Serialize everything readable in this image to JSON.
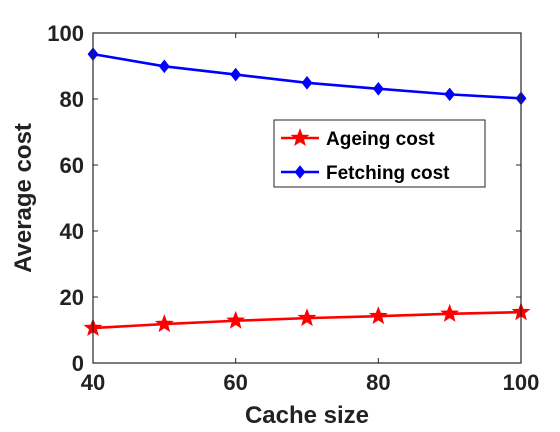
{
  "chart_data": {
    "type": "line",
    "title": "",
    "xlabel": "Cache size",
    "ylabel": "Average cost",
    "x": [
      40,
      50,
      60,
      70,
      80,
      90,
      100
    ],
    "xlim": [
      40,
      100
    ],
    "ylim": [
      0,
      100
    ],
    "xticks": [
      "40",
      "60",
      "80",
      "100"
    ],
    "yticks": [
      "0",
      "20",
      "40",
      "60",
      "80",
      "100"
    ],
    "grid": false,
    "legend_position": "upper-right",
    "series": [
      {
        "name": "Ageing cost",
        "color": "#ff0000",
        "marker": "star",
        "values": [
          10.6,
          11.8,
          12.8,
          13.6,
          14.2,
          14.9,
          15.4
        ]
      },
      {
        "name": "Fetching cost",
        "color": "#0000ff",
        "marker": "diamond",
        "values": [
          93.6,
          89.9,
          87.4,
          84.9,
          83.1,
          81.4,
          80.2
        ]
      }
    ]
  }
}
